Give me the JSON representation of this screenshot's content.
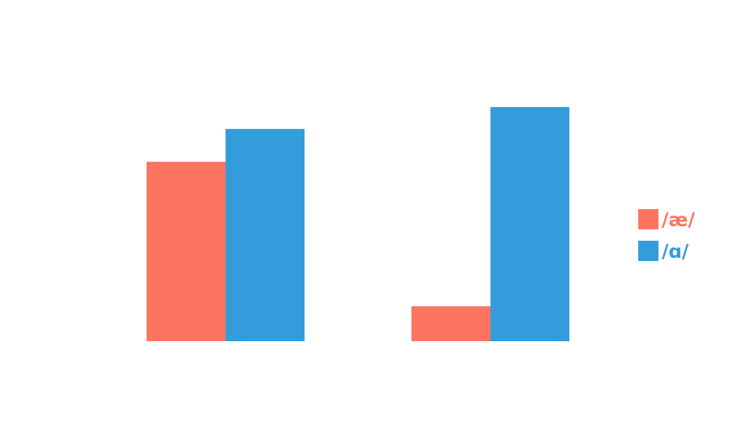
{
  "chart_data": {
    "type": "bar",
    "categories": [
      "",
      ""
    ],
    "series": [
      {
        "name": "/æ/",
        "values": [
          41,
          8
        ],
        "color": "#fd7461"
      },
      {
        "name": "/ɑ/",
        "values": [
          48.5,
          53.5
        ],
        "color": "#339ddb"
      }
    ],
    "ylim": [
      0,
      60
    ],
    "grid": false,
    "legend": "right"
  }
}
